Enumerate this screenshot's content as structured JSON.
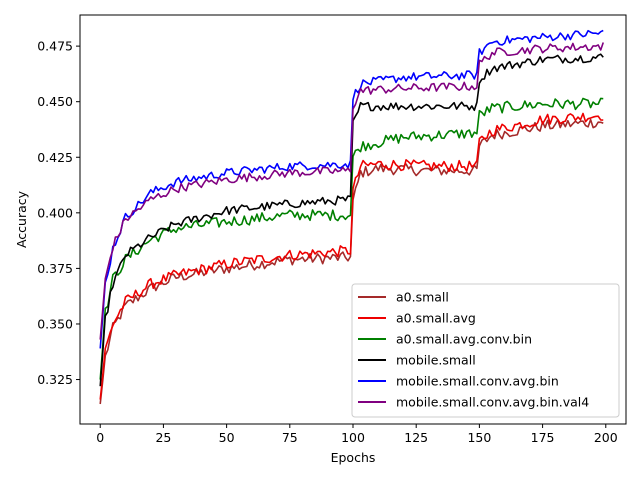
{
  "chart_data": {
    "type": "line",
    "title": "",
    "xlabel": "Epochs",
    "ylabel": "Accuracy",
    "xlim": [
      -8,
      208
    ],
    "ylim": [
      0.305,
      0.489
    ],
    "xticks": [
      0,
      25,
      50,
      75,
      100,
      125,
      150,
      175,
      200
    ],
    "yticks": [
      0.325,
      0.35,
      0.375,
      0.4,
      0.425,
      0.45,
      0.475
    ],
    "xtick_labels": [
      "0",
      "25",
      "50",
      "75",
      "100",
      "125",
      "150",
      "175",
      "200"
    ],
    "ytick_labels": [
      "0.325",
      "0.350",
      "0.375",
      "0.400",
      "0.425",
      "0.450",
      "0.475"
    ],
    "grid": false,
    "legend_position": "lower-right",
    "x_range": [
      0,
      199
    ],
    "series": [
      {
        "name": "a0.small",
        "color": "#a52a2a",
        "keypoints": [
          [
            0,
            0.314
          ],
          [
            2,
            0.335
          ],
          [
            5,
            0.348
          ],
          [
            10,
            0.358
          ],
          [
            20,
            0.366
          ],
          [
            30,
            0.371
          ],
          [
            50,
            0.375
          ],
          [
            75,
            0.379
          ],
          [
            99,
            0.38
          ],
          [
            100,
            0.405
          ],
          [
            103,
            0.418
          ],
          [
            110,
            0.42
          ],
          [
            130,
            0.419
          ],
          [
            149,
            0.419
          ],
          [
            150,
            0.43
          ],
          [
            155,
            0.435
          ],
          [
            175,
            0.439
          ],
          [
            199,
            0.441
          ]
        ],
        "noise": 0.0025
      },
      {
        "name": "a0.small.avg",
        "color": "#ee0000",
        "keypoints": [
          [
            0,
            0.316
          ],
          [
            2,
            0.338
          ],
          [
            5,
            0.35
          ],
          [
            10,
            0.36
          ],
          [
            20,
            0.368
          ],
          [
            30,
            0.372
          ],
          [
            50,
            0.377
          ],
          [
            75,
            0.381
          ],
          [
            99,
            0.383
          ],
          [
            100,
            0.41
          ],
          [
            103,
            0.421
          ],
          [
            110,
            0.422
          ],
          [
            130,
            0.421
          ],
          [
            149,
            0.421
          ],
          [
            150,
            0.432
          ],
          [
            155,
            0.437
          ],
          [
            175,
            0.442
          ],
          [
            199,
            0.444
          ]
        ],
        "noise": 0.0025
      },
      {
        "name": "a0.small.avg.conv.bin",
        "color": "#008000",
        "keypoints": [
          [
            0,
            0.325
          ],
          [
            2,
            0.355
          ],
          [
            5,
            0.37
          ],
          [
            10,
            0.379
          ],
          [
            20,
            0.388
          ],
          [
            30,
            0.393
          ],
          [
            50,
            0.396
          ],
          [
            75,
            0.399
          ],
          [
            99,
            0.399
          ],
          [
            100,
            0.425
          ],
          [
            103,
            0.43
          ],
          [
            120,
            0.434
          ],
          [
            149,
            0.436
          ],
          [
            150,
            0.444
          ],
          [
            155,
            0.447
          ],
          [
            175,
            0.449
          ],
          [
            199,
            0.449
          ]
        ],
        "noise": 0.0025
      },
      {
        "name": "mobile.small",
        "color": "#000000",
        "keypoints": [
          [
            0,
            0.322
          ],
          [
            2,
            0.352
          ],
          [
            5,
            0.368
          ],
          [
            10,
            0.381
          ],
          [
            20,
            0.389
          ],
          [
            30,
            0.395
          ],
          [
            50,
            0.401
          ],
          [
            75,
            0.404
          ],
          [
            99,
            0.406
          ],
          [
            100,
            0.44
          ],
          [
            103,
            0.448
          ],
          [
            120,
            0.448
          ],
          [
            149,
            0.448
          ],
          [
            150,
            0.46
          ],
          [
            155,
            0.465
          ],
          [
            175,
            0.469
          ],
          [
            199,
            0.47
          ]
        ],
        "noise": 0.002
      },
      {
        "name": "mobile.small.conv.avg.bin",
        "color": "#0000ff",
        "keypoints": [
          [
            0,
            0.339
          ],
          [
            2,
            0.368
          ],
          [
            5,
            0.384
          ],
          [
            10,
            0.398
          ],
          [
            20,
            0.409
          ],
          [
            30,
            0.414
          ],
          [
            50,
            0.418
          ],
          [
            75,
            0.421
          ],
          [
            99,
            0.422
          ],
          [
            100,
            0.452
          ],
          [
            103,
            0.458
          ],
          [
            120,
            0.461
          ],
          [
            149,
            0.462
          ],
          [
            150,
            0.472
          ],
          [
            155,
            0.477
          ],
          [
            175,
            0.479
          ],
          [
            199,
            0.481
          ]
        ],
        "noise": 0.002
      },
      {
        "name": "mobile.small.conv.avg.bin.val4",
        "color": "#800080",
        "keypoints": [
          [
            0,
            0.343
          ],
          [
            2,
            0.37
          ],
          [
            5,
            0.385
          ],
          [
            10,
            0.397
          ],
          [
            20,
            0.406
          ],
          [
            30,
            0.411
          ],
          [
            50,
            0.415
          ],
          [
            75,
            0.418
          ],
          [
            99,
            0.419
          ],
          [
            100,
            0.448
          ],
          [
            103,
            0.455
          ],
          [
            120,
            0.456
          ],
          [
            149,
            0.457
          ],
          [
            150,
            0.467
          ],
          [
            155,
            0.472
          ],
          [
            175,
            0.474
          ],
          [
            199,
            0.475
          ]
        ],
        "noise": 0.002
      }
    ]
  }
}
